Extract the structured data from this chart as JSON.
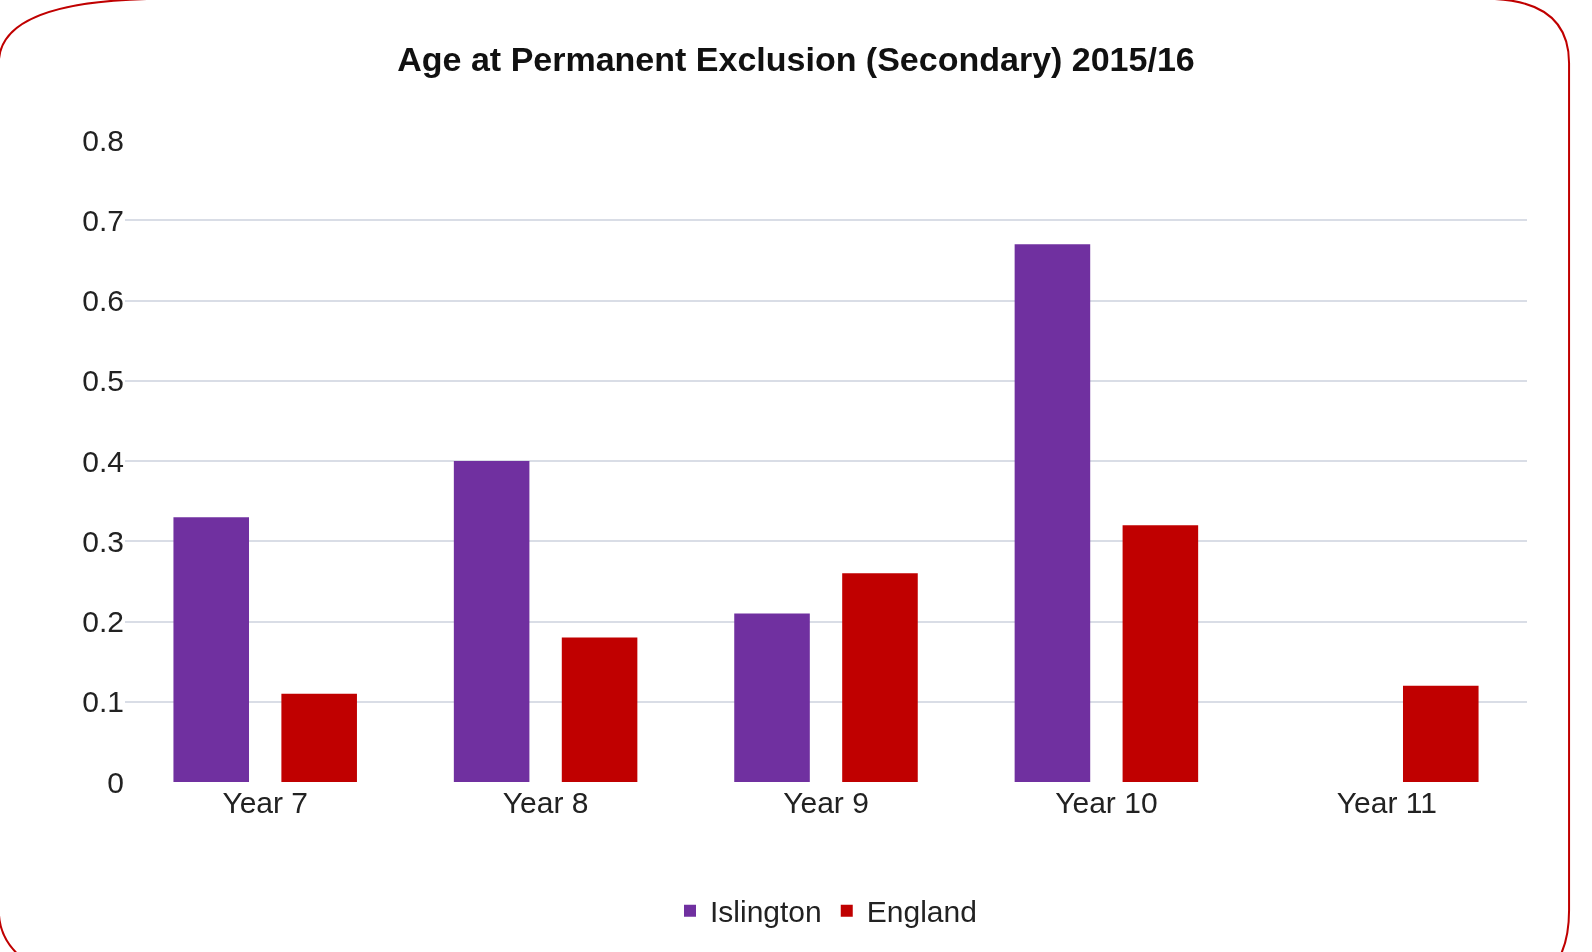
{
  "chart_data": {
    "type": "bar",
    "title": "Age at Permanent Exclusion (Secondary) 2015/16",
    "categories": [
      "Year 7",
      "Year 8",
      "Year 9",
      "Year 10",
      "Year 11"
    ],
    "series": [
      {
        "name": "Islington",
        "color": "#7030a0",
        "values": [
          0.33,
          0.4,
          0.21,
          0.67,
          0
        ]
      },
      {
        "name": "England",
        "color": "#c00000",
        "values": [
          0.11,
          0.18,
          0.26,
          0.32,
          0.12
        ]
      }
    ],
    "ylim": [
      0,
      0.8
    ],
    "yticks": [
      0,
      0.1,
      0.2,
      0.3,
      0.4,
      0.5,
      0.6,
      0.7,
      0.8
    ],
    "grid": "y",
    "legend": "bottom"
  }
}
